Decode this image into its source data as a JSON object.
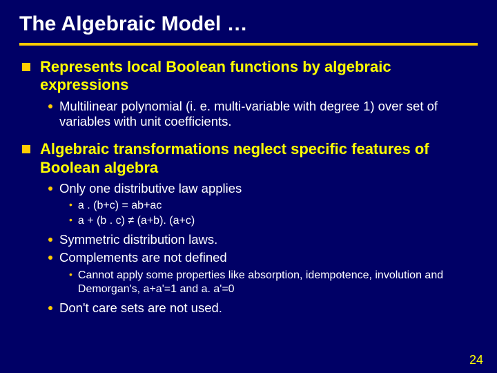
{
  "title": "The Algebraic Model …",
  "pageNumber": "24",
  "colors": {
    "background": "#000066",
    "title": "#ffffff",
    "rule": "#ffcc00",
    "level1": "#ffff00",
    "bodyText": "#ffffff",
    "bullet": "#ffcc00",
    "pageNum": "#ffff00"
  },
  "b1": {
    "text": "Represents local Boolean functions by algebraic expressions",
    "sub1": "Multilinear polynomial (i. e. multi-variable with degree 1) over set of variables with unit coefficients."
  },
  "b2": {
    "text": "Algebraic transformations neglect specific features of Boolean algebra",
    "sub1": "Only one distributive law applies",
    "sub1a": "a . (b+c) = ab+ac",
    "sub1b": "a + (b . c) ≠ (a+b). (a+c)",
    "sub2": "Symmetric distribution laws.",
    "sub3": "Complements are not defined",
    "sub3a": "Cannot apply some properties like absorption, idempotence, involution and Demorgan's, a+a'=1 and  a. a'=0",
    "sub4": "Don't care sets are not used."
  }
}
